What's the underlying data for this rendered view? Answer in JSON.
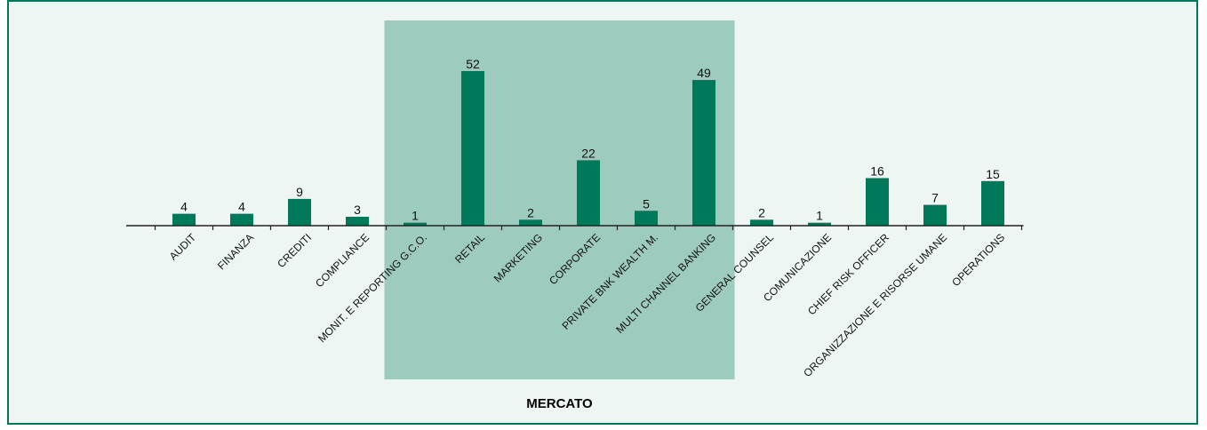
{
  "chart_data": {
    "type": "bar",
    "title": "",
    "xlabel": "",
    "ylabel": "",
    "categories": [
      "AUDIT",
      "FINANZA",
      "CREDITI",
      "COMPLIANCE",
      "MONIT. E REPORTING G.C.O.",
      "RETAIL",
      "MARKETING",
      "CORPORATE",
      "PRIVATE BNK WEALTH M.",
      "MULTI CHANNEL BANKING",
      "GENERAL COUNSEL",
      "COMUNICAZIONE",
      "CHIEF RISK OFFICER",
      "ORGANIZZAZIONE E RISORSE UMANE",
      "OPERATIONS"
    ],
    "values": [
      4,
      4,
      9,
      3,
      1,
      52,
      2,
      22,
      5,
      49,
      2,
      1,
      16,
      7,
      15
    ],
    "ylim": [
      0,
      52
    ],
    "grid": false,
    "group_highlight": {
      "label": "MERCATO",
      "categories": [
        "MONIT. E REPORTING G.C.O.",
        "RETAIL",
        "MARKETING",
        "CORPORATE",
        "PRIVATE BNK WEALTH M.",
        "MULTI CHANNEL BANKING"
      ]
    }
  },
  "colors": {
    "bar": "#00785a",
    "highlight": "#9dcbbe",
    "background": "#eef6f4",
    "border": "#00785a"
  }
}
